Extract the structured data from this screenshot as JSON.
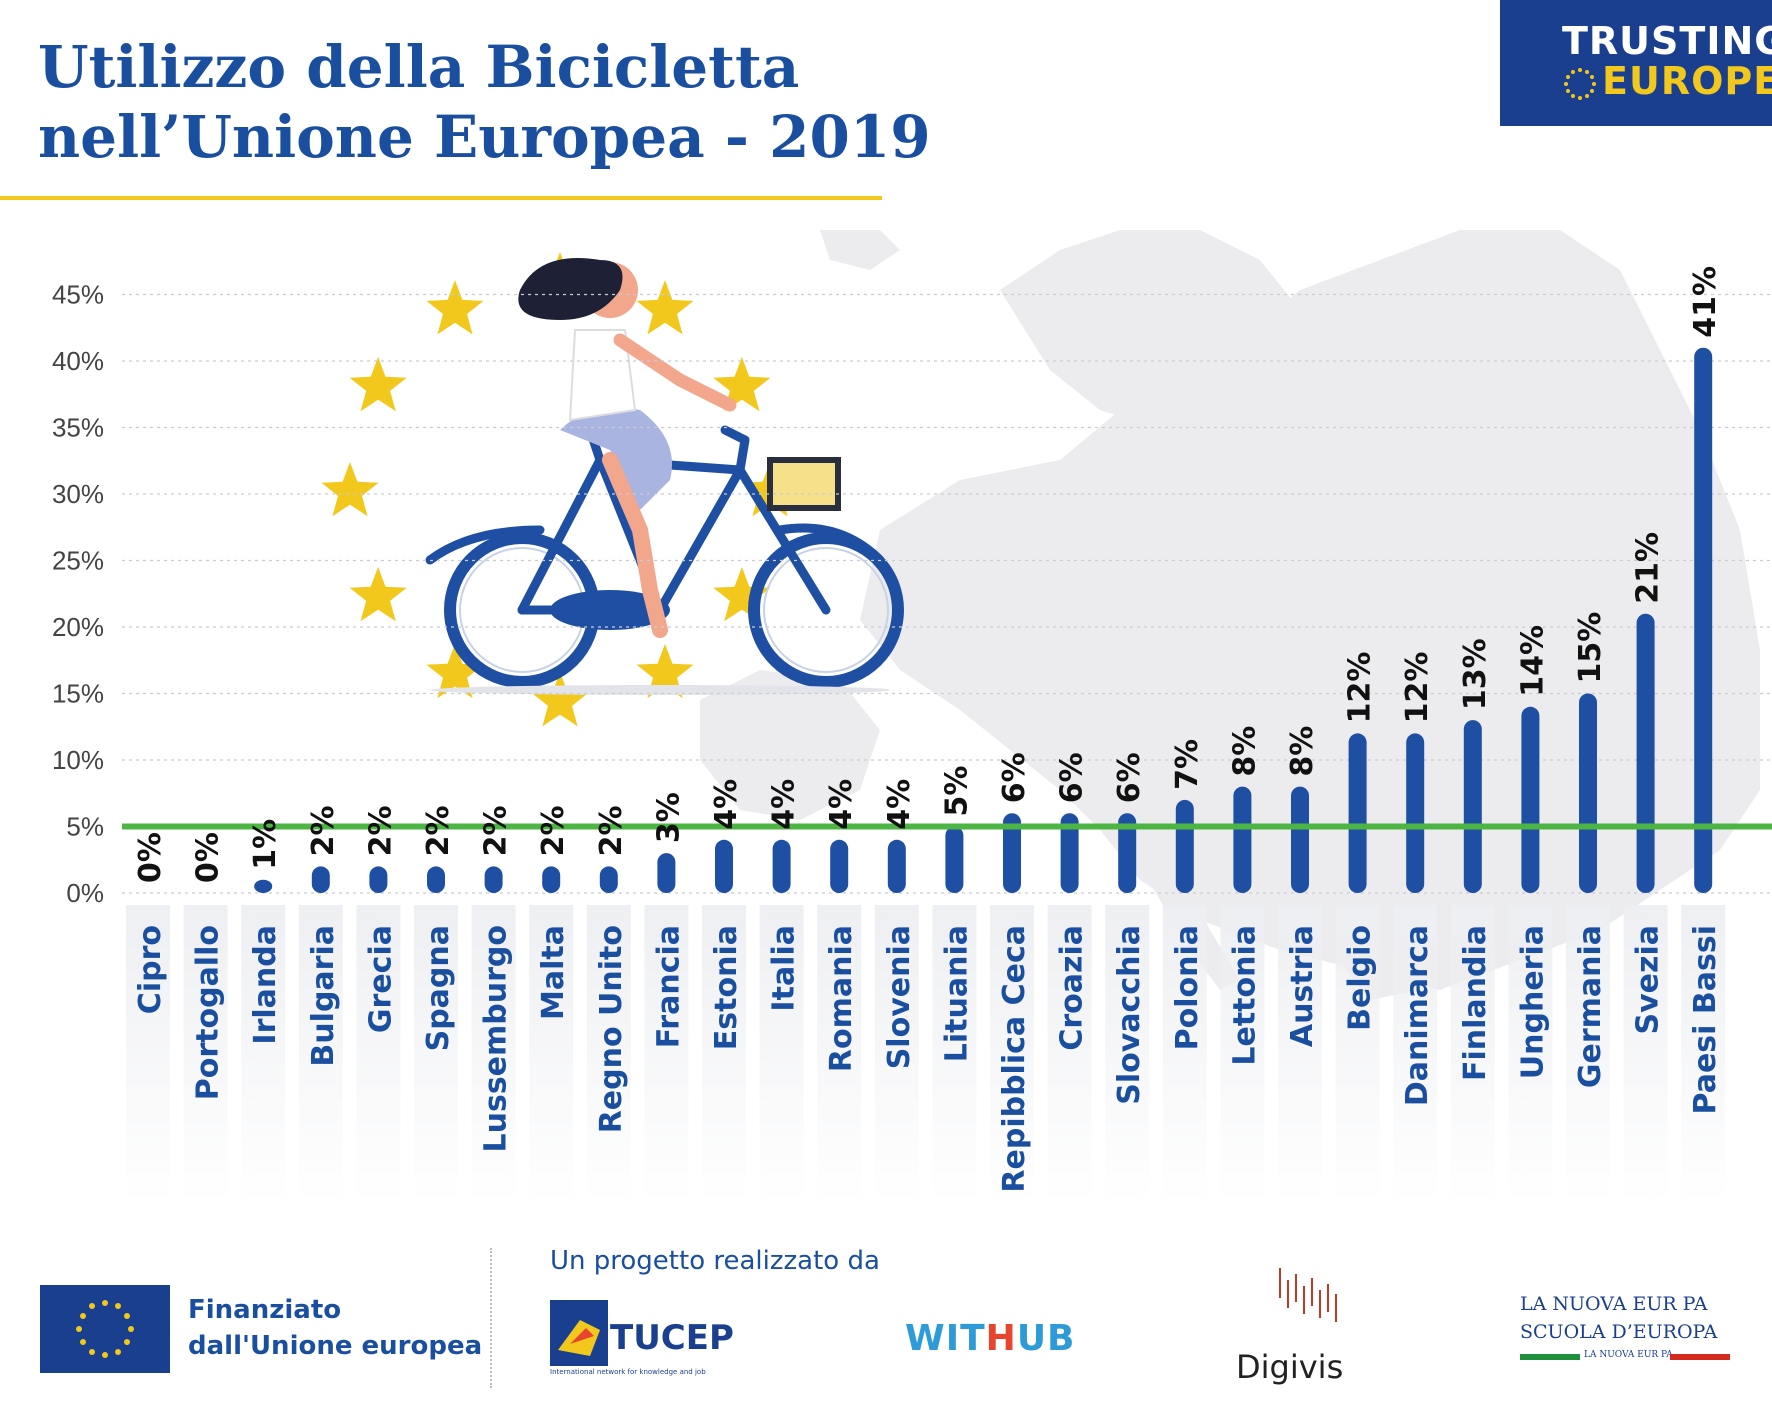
{
  "title": {
    "line1": "Utilizzo della Bicicletta",
    "line2": "nell’Unione Europea - 2019"
  },
  "badge": {
    "line1": "TRUSTING",
    "line2": "EUROPE"
  },
  "chart_data": {
    "type": "bar",
    "title": "Utilizzo della Bicicletta nell’Unione Europea - 2019",
    "xlabel": "",
    "ylabel": "",
    "categories": [
      "Cipro",
      "Portogallo",
      "Irlanda",
      "Bulgaria",
      "Grecia",
      "Spagna",
      "Lussemburgo",
      "Malta",
      "Regno Unito",
      "Francia",
      "Estonia",
      "Italia",
      "Romania",
      "Slovenia",
      "Lituania",
      "Repibblica Ceca",
      "Croazia",
      "Slovacchia",
      "Polonia",
      "Lettonia",
      "Austria",
      "Belgio",
      "Danimarca",
      "Finlandia",
      "Ungheria",
      "Germania",
      "Svezia",
      "Paesi Bassi"
    ],
    "values": [
      0,
      0,
      1,
      2,
      2,
      2,
      2,
      2,
      2,
      3,
      4,
      4,
      4,
      4,
      5,
      6,
      6,
      6,
      7,
      8,
      8,
      12,
      12,
      13,
      14,
      15,
      21,
      41
    ],
    "value_labels": [
      "0%",
      "0%",
      "1%",
      "2%",
      "2%",
      "2%",
      "2%",
      "2%",
      "2%",
      "3%",
      "4%",
      "4%",
      "4%",
      "4%",
      "5%",
      "6%",
      "6%",
      "6%",
      "7%",
      "8%",
      "8%",
      "12%",
      "12%",
      "13%",
      "14%",
      "15%",
      "21%",
      "41%"
    ],
    "yticks": [
      0,
      5,
      10,
      15,
      20,
      25,
      30,
      35,
      40,
      45
    ],
    "ytick_labels": [
      "0%",
      "5%",
      "10%",
      "15%",
      "20%",
      "25%",
      "30%",
      "35%",
      "40%",
      "45%"
    ],
    "ylim": [
      0,
      45
    ],
    "reference_line": 5,
    "grid": true,
    "colors": {
      "bar": "#1f4fa3",
      "reference_line": "#4cb543",
      "label": "#111111",
      "category": "#1a4fa0"
    }
  },
  "footer": {
    "eu_line1": "Finanziato",
    "eu_line2": "dall'Unione europea",
    "partners_label": "Un progetto realizzato da",
    "tucep_name": "TUCEP",
    "tucep_tagline": "International network for knowledge and job",
    "withub_w": "WIT",
    "withub_h": "H",
    "withub_ub": "UB",
    "digivis": "Digivis",
    "nuova_line1": "LA NUOVA EUR PA",
    "nuova_line2": "SCUOLA D’EUROPA",
    "nuova_line3": "LA NUOVA EUR PA"
  }
}
